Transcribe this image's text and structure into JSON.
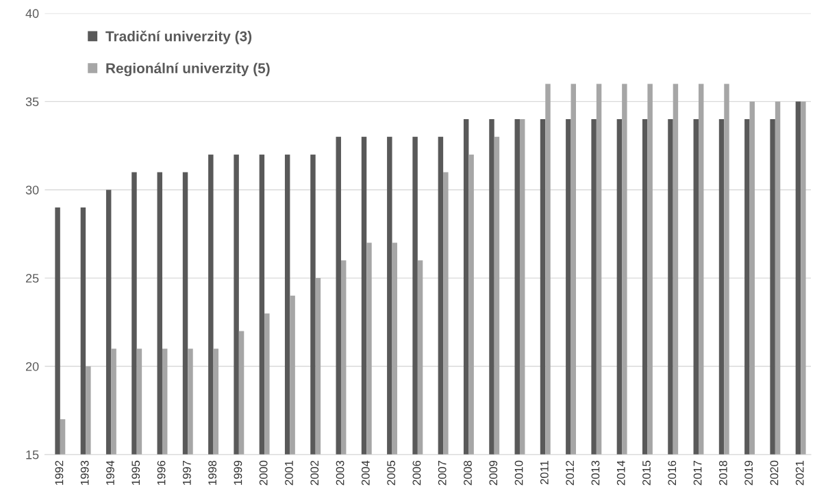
{
  "chart_data": {
    "type": "bar",
    "categories": [
      "1992",
      "1993",
      "1994",
      "1995",
      "1996",
      "1997",
      "1998",
      "1999",
      "2000",
      "2001",
      "2002",
      "2003",
      "2004",
      "2005",
      "2006",
      "2007",
      "2008",
      "2009",
      "2010",
      "2011",
      "2012",
      "2013",
      "2014",
      "2015",
      "2016",
      "2017",
      "2018",
      "2019",
      "2020",
      "2021"
    ],
    "series": [
      {
        "name": "Tradiční univerzity (3)",
        "color": "#595959",
        "values": [
          29,
          29,
          30,
          31,
          31,
          31,
          32,
          32,
          32,
          32,
          32,
          33,
          33,
          33,
          33,
          33,
          34,
          34,
          34,
          34,
          34,
          34,
          34,
          34,
          34,
          34,
          34,
          34,
          34,
          35
        ]
      },
      {
        "name": "Regionální univerzity (5)",
        "color": "#a6a6a6",
        "values": [
          17,
          20,
          21,
          21,
          21,
          21,
          21,
          22,
          23,
          24,
          25,
          26,
          27,
          27,
          26,
          31,
          32,
          33,
          34,
          36,
          36,
          36,
          36,
          36,
          36,
          36,
          36,
          35,
          35,
          35
        ]
      }
    ],
    "ylim": [
      15,
      40
    ],
    "yticks": [
      15,
      20,
      25,
      30,
      35,
      40
    ],
    "grid": "y",
    "legend": "top left"
  }
}
